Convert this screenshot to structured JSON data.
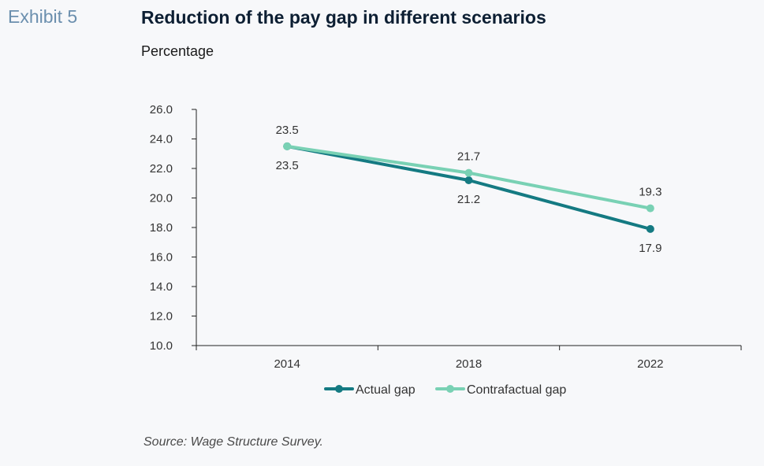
{
  "header": {
    "exhibit": "Exhibit 5",
    "title": "Reduction of the pay gap in different scenarios",
    "subtitle": "Percentage"
  },
  "footer": {
    "source": "Source: Wage Structure Survey."
  },
  "colors": {
    "actual": "#147a82",
    "contrafactual": "#79d1b4",
    "axis": "#222222"
  },
  "chart_data": {
    "type": "line",
    "categories": [
      "2014",
      "2018",
      "2022"
    ],
    "ylim": [
      10,
      26
    ],
    "yticks": [
      "10.0",
      "12.0",
      "14.0",
      "16.0",
      "18.0",
      "20.0",
      "22.0",
      "24.0",
      "26.0"
    ],
    "grid": false,
    "legend_position": "bottom",
    "series": [
      {
        "name": "Actual gap",
        "values": [
          23.5,
          21.2,
          17.9
        ],
        "labels": [
          "23.5",
          "21.2",
          "17.9"
        ],
        "label_position": "below"
      },
      {
        "name": "Contrafactual gap",
        "values": [
          23.5,
          21.7,
          19.3
        ],
        "labels": [
          "23.5",
          "21.7",
          "19.3"
        ],
        "label_position": "above"
      }
    ]
  }
}
